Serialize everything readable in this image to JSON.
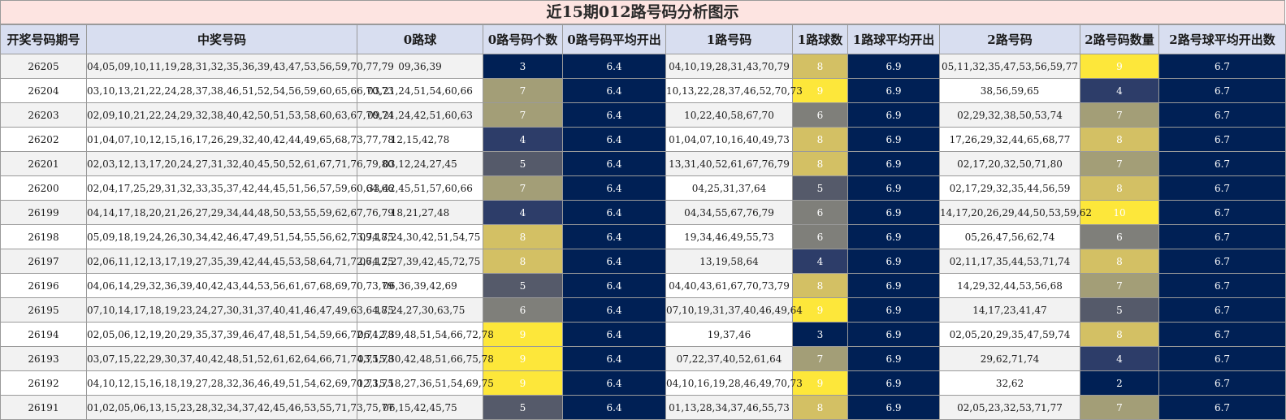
{
  "title": "近15期012路号码分析图示",
  "headers": [
    "开奖号码期号",
    "中奖号码",
    "0路球",
    "0路号码个数",
    "0路号码平均开出",
    "1路号码",
    "1路球数",
    "1路球平均开出",
    "2路号码",
    "2路号码数量",
    "2路号球平均开出数"
  ],
  "colors": {
    "title_bg": "#fde4e1",
    "header_bg": "#d8def0",
    "avg_bg": "#002055",
    "count_scale": {
      "2": "#002055",
      "3": "#002055",
      "4": "#2d3d69",
      "5": "#555a6a",
      "6": "#7f7f7a",
      "7": "#a39e77",
      "8": "#d3c064",
      "9": "#fde73a",
      "10": "#fde73a"
    }
  },
  "rows": [
    {
      "period": "26205",
      "winning": "04,05,09,10,11,19,28,31,32,35,36,39,43,47,53,56,59,70,77,79",
      "r0": "09,36,39",
      "c0": "3",
      "a0": "6.4",
      "r1": "04,10,19,28,31,43,70,79",
      "c1": "8",
      "a1": "6.9",
      "r2": "05,11,32,35,47,53,56,59,77",
      "c2": "9",
      "a2": "6.7"
    },
    {
      "period": "26204",
      "winning": "03,10,13,21,22,24,28,37,38,46,51,52,54,56,59,60,65,66,70,73",
      "r0": "03,21,24,51,54,60,66",
      "c0": "7",
      "a0": "6.4",
      "r1": "10,13,22,28,37,46,52,70,73",
      "c1": "9",
      "a1": "6.9",
      "r2": "38,56,59,65",
      "c2": "4",
      "a2": "6.7"
    },
    {
      "period": "26203",
      "winning": "02,09,10,21,22,24,29,32,38,40,42,50,51,53,58,60,63,67,70,74",
      "r0": "09,21,24,42,51,60,63",
      "c0": "7",
      "a0": "6.4",
      "r1": "10,22,40,58,67,70",
      "c1": "6",
      "a1": "6.9",
      "r2": "02,29,32,38,50,53,74",
      "c2": "7",
      "a2": "6.7"
    },
    {
      "period": "26202",
      "winning": "01,04,07,10,12,15,16,17,26,29,32,40,42,44,49,65,68,73,77,78",
      "r0": "12,15,42,78",
      "c0": "4",
      "a0": "6.4",
      "r1": "01,04,07,10,16,40,49,73",
      "c1": "8",
      "a1": "6.9",
      "r2": "17,26,29,32,44,65,68,77",
      "c2": "8",
      "a2": "6.7"
    },
    {
      "period": "26201",
      "winning": "02,03,12,13,17,20,24,27,31,32,40,45,50,52,61,67,71,76,79,80",
      "r0": "03,12,24,27,45",
      "c0": "5",
      "a0": "6.4",
      "r1": "13,31,40,52,61,67,76,79",
      "c1": "8",
      "a1": "6.9",
      "r2": "02,17,20,32,50,71,80",
      "c2": "7",
      "a2": "6.7"
    },
    {
      "period": "26200",
      "winning": "02,04,17,25,29,31,32,33,35,37,42,44,45,51,56,57,59,60,64,66",
      "r0": "33,42,45,51,57,60,66",
      "c0": "7",
      "a0": "6.4",
      "r1": "04,25,31,37,64",
      "c1": "5",
      "a1": "6.9",
      "r2": "02,17,29,32,35,44,56,59",
      "c2": "8",
      "a2": "6.7"
    },
    {
      "period": "26199",
      "winning": "04,14,17,18,20,21,26,27,29,34,44,48,50,53,55,59,62,67,76,79",
      "r0": "18,21,27,48",
      "c0": "4",
      "a0": "6.4",
      "r1": "04,34,55,67,76,79",
      "c1": "6",
      "a1": "6.9",
      "r2": "14,17,20,26,29,44,50,53,59,62",
      "c2": "10",
      "a2": "6.7"
    },
    {
      "period": "26198",
      "winning": "05,09,18,19,24,26,30,34,42,46,47,49,51,54,55,56,62,73,74,75",
      "r0": "09,18,24,30,42,51,54,75",
      "c0": "8",
      "a0": "6.4",
      "r1": "19,34,46,49,55,73",
      "c1": "6",
      "a1": "6.9",
      "r2": "05,26,47,56,62,74",
      "c2": "6",
      "a2": "6.7"
    },
    {
      "period": "26197",
      "winning": "02,06,11,12,13,17,19,27,35,39,42,44,45,53,58,64,71,72,74,75",
      "r0": "06,12,27,39,42,45,72,75",
      "c0": "8",
      "a0": "6.4",
      "r1": "13,19,58,64",
      "c1": "4",
      "a1": "6.9",
      "r2": "02,11,17,35,44,53,71,74",
      "c2": "8",
      "a2": "6.7"
    },
    {
      "period": "26196",
      "winning": "04,06,14,29,32,36,39,40,42,43,44,53,56,61,67,68,69,70,73,79",
      "r0": "06,36,39,42,69",
      "c0": "5",
      "a0": "6.4",
      "r1": "04,40,43,61,67,70,73,79",
      "c1": "8",
      "a1": "6.9",
      "r2": "14,29,32,44,53,56,68",
      "c2": "7",
      "a2": "6.7"
    },
    {
      "period": "26195",
      "winning": "07,10,14,17,18,19,23,24,27,30,31,37,40,41,46,47,49,63,64,75",
      "r0": "18,24,27,30,63,75",
      "c0": "6",
      "a0": "6.4",
      "r1": "07,10,19,31,37,40,46,49,64",
      "c1": "9",
      "a1": "6.9",
      "r2": "14,17,23,41,47",
      "c2": "5",
      "a2": "6.7"
    },
    {
      "period": "26194",
      "winning": "02,05,06,12,19,20,29,35,37,39,46,47,48,51,54,59,66,72,74,78",
      "r0": "06,12,39,48,51,54,66,72,78",
      "c0": "9",
      "a0": "6.4",
      "r1": "19,37,46",
      "c1": "3",
      "a1": "6.9",
      "r2": "02,05,20,29,35,47,59,74",
      "c2": "8",
      "a2": "6.7"
    },
    {
      "period": "26193",
      "winning": "03,07,15,22,29,30,37,40,42,48,51,52,61,62,64,66,71,74,75,78",
      "r0": "03,15,30,42,48,51,66,75,78",
      "c0": "9",
      "a0": "6.4",
      "r1": "07,22,37,40,52,61,64",
      "c1": "7",
      "a1": "6.9",
      "r2": "29,62,71,74",
      "c2": "4",
      "a2": "6.7"
    },
    {
      "period": "26192",
      "winning": "04,10,12,15,16,18,19,27,28,32,36,46,49,51,54,62,69,70,73,75",
      "r0": "12,15,18,27,36,51,54,69,75",
      "c0": "9",
      "a0": "6.4",
      "r1": "04,10,16,19,28,46,49,70,73",
      "c1": "9",
      "a1": "6.9",
      "r2": "32,62",
      "c2": "2",
      "a2": "6.7"
    },
    {
      "period": "26191",
      "winning": "01,02,05,06,13,15,23,28,32,34,37,42,45,46,53,55,71,73,75,77",
      "r0": "06,15,42,45,75",
      "c0": "5",
      "a0": "6.4",
      "r1": "01,13,28,34,37,46,55,73",
      "c1": "8",
      "a1": "6.9",
      "r2": "02,05,23,32,53,71,77",
      "c2": "7",
      "a2": "6.7"
    }
  ]
}
